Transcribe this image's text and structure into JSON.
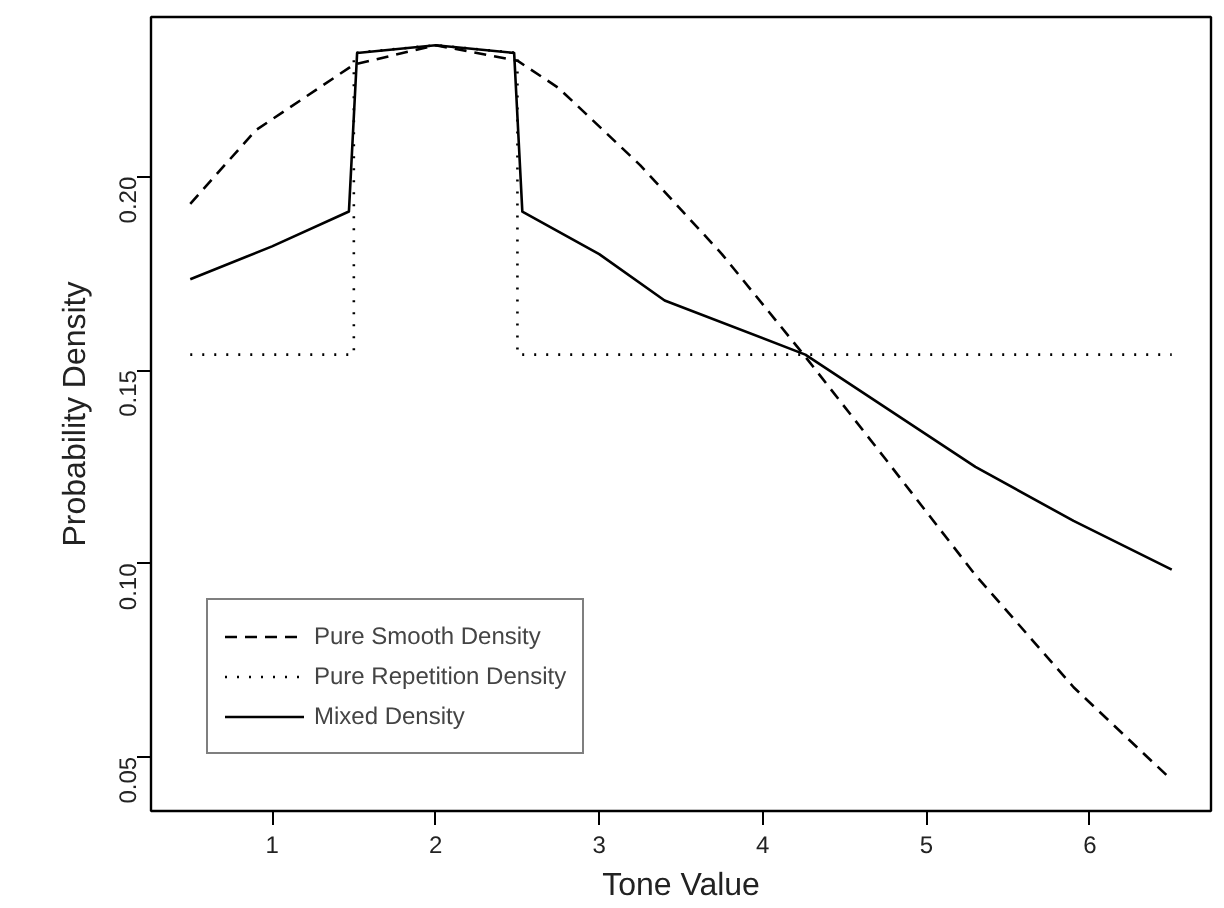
{
  "chart_data": {
    "type": "line",
    "xlabel": "Tone Value",
    "ylabel": "Probability Density",
    "xlim": [
      0.26,
      6.74
    ],
    "ylim": [
      0.036,
      0.2413
    ],
    "xticks": [
      1,
      2,
      3,
      4,
      5,
      6
    ],
    "yticks": [
      {
        "value": 0.05,
        "label": "0.05"
      },
      {
        "value": 0.1,
        "label": "0.10"
      },
      {
        "value": 0.15,
        "label": "0.15"
      },
      {
        "value": 0.2,
        "label": "0.20"
      }
    ],
    "grid": false,
    "legend": "bottom left",
    "series": [
      {
        "name": "Pure Smooth Density",
        "color": "#000000",
        "line_style": "dashed",
        "x": [
          0.5,
          0.9,
          1.5,
          2,
          2.5,
          2.75,
          3.25,
          3.75,
          4.25,
          4.75,
          5.3,
          5.9,
          6.5
        ],
        "values": [
          0.193,
          0.212,
          0.229,
          0.234,
          0.23,
          0.223,
          0.203,
          0.18,
          0.154,
          0.127,
          0.097,
          0.068,
          0.044
        ]
      },
      {
        "name": "Pure Repetition Density",
        "color": "#000000",
        "line_style": "dotted",
        "x": [
          0.5,
          1.5,
          1.5,
          2,
          2.5,
          2.5,
          6.5
        ],
        "values": [
          0.154,
          0.154,
          0.232,
          0.234,
          0.232,
          0.154,
          0.154
        ]
      },
      {
        "name": "Mixed Density",
        "color": "#000000",
        "line_style": "solid",
        "x": [
          0.5,
          1,
          1.47,
          1.52,
          2,
          2.48,
          2.53,
          3,
          3.4,
          4.26,
          5.3,
          5.9,
          6.5
        ],
        "values": [
          0.1735,
          0.182,
          0.191,
          0.232,
          0.234,
          0.232,
          0.191,
          0.18,
          0.168,
          0.154,
          0.125,
          0.111,
          0.0984
        ]
      }
    ]
  }
}
